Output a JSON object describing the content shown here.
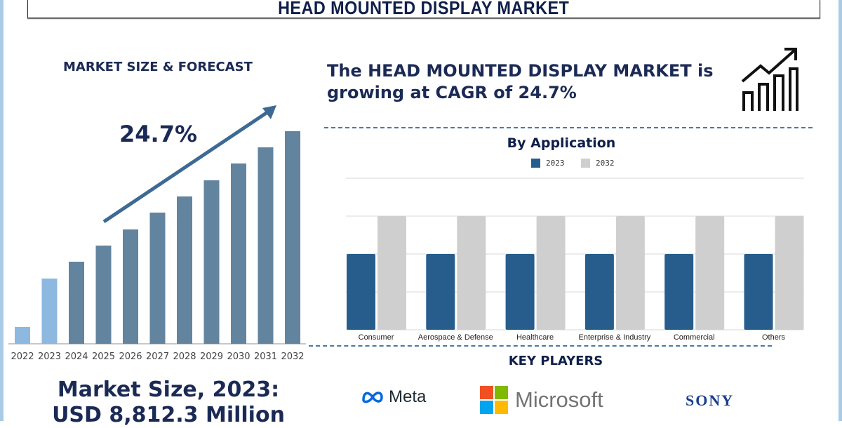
{
  "header": {
    "title": "HEAD MOUNTED DISPLAY MARKET"
  },
  "left": {
    "title": "MARKET SIZE & FORECAST",
    "cagr": "24.7%",
    "market_size_line1": "Market Size, 2023:",
    "market_size_line2": "USD 8,812.3 Million"
  },
  "right": {
    "headline_line1": "The HEAD MOUNTED DISPLAY MARKET is",
    "headline_line2": "growing at CAGR of 24.7%",
    "growth_icon": "bar-chart-growth-arrow-icon",
    "key_players_title": "KEY PLAYERS",
    "key_players": [
      "Meta",
      "Microsoft",
      "SONY"
    ]
  },
  "chart_data": [
    {
      "type": "bar",
      "title": "",
      "categories": [
        "2022",
        "2023",
        "2024",
        "2025",
        "2026",
        "2027",
        "2028",
        "2029",
        "2030",
        "2031",
        "2032"
      ],
      "values": [
        24,
        93,
        117,
        140,
        163,
        187,
        210,
        233,
        257,
        280,
        303
      ],
      "note_values": "relative bar heights, no axis printed",
      "colors": {
        "historic": "#8db8e0",
        "forecast": "#62849f",
        "arrow": "#3d6a94"
      },
      "historic_count": 2,
      "grid": false
    },
    {
      "type": "bar",
      "title": "By Application",
      "categories": [
        "Consumer",
        "Aerospace & Defense",
        "Healthcare",
        "Enterprise & Industry",
        "Commercial",
        "Others"
      ],
      "series": [
        {
          "name": "2023",
          "values": [
            2,
            2,
            2,
            2,
            2,
            2
          ],
          "color": "#275d8c"
        },
        {
          "name": "2032",
          "values": [
            3,
            3,
            3,
            3,
            3,
            3
          ],
          "color": "#cfcfcf"
        }
      ],
      "ylim": [
        0,
        4
      ],
      "grid": true,
      "legend": "top"
    }
  ]
}
